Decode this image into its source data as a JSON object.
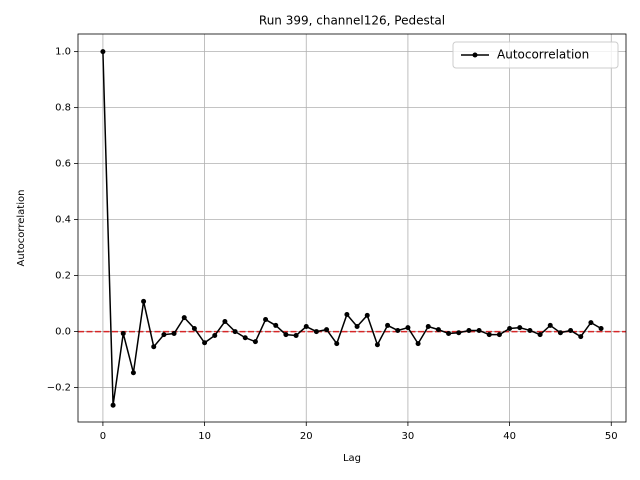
{
  "chart_data": {
    "type": "line",
    "title": "Run 399, channel126, Pedestal",
    "x_label": "Lag",
    "y_label": "Autocorrelation",
    "x": [
      0,
      1,
      2,
      3,
      4,
      5,
      6,
      7,
      8,
      9,
      10,
      11,
      12,
      13,
      14,
      15,
      16,
      17,
      18,
      19,
      20,
      21,
      22,
      23,
      24,
      25,
      26,
      27,
      28,
      29,
      30,
      31,
      32,
      33,
      34,
      35,
      36,
      37,
      38,
      39,
      40,
      41,
      42,
      43,
      44,
      45,
      46,
      47,
      48,
      49
    ],
    "series": [
      {
        "name": "Autocorrelation",
        "color": "#000000",
        "values": [
          1.0,
          -0.263,
          -0.007,
          -0.147,
          0.108,
          -0.054,
          -0.011,
          -0.007,
          0.05,
          0.011,
          -0.04,
          -0.014,
          0.036,
          0.0,
          -0.022,
          -0.036,
          0.043,
          0.022,
          -0.011,
          -0.014,
          0.018,
          0.0,
          0.007,
          -0.043,
          0.061,
          0.018,
          0.058,
          -0.047,
          0.022,
          0.004,
          0.014,
          -0.043,
          0.018,
          0.007,
          -0.007,
          -0.004,
          0.004,
          0.004,
          -0.011,
          -0.011,
          0.011,
          0.014,
          0.004,
          -0.011,
          0.022,
          -0.004,
          0.004,
          -0.018,
          0.032,
          0.011
        ]
      }
    ],
    "hline": {
      "value": 0,
      "color": "#d62728"
    },
    "xlim": [
      -2.45,
      51.45
    ],
    "ylim": [
      -0.323,
      1.063
    ],
    "xticks": [
      0,
      10,
      20,
      30,
      40,
      50
    ],
    "yticks": [
      {
        "value": -0.2,
        "label": "−0.2"
      },
      {
        "value": 0,
        "label": "0.0"
      },
      {
        "value": 0.2,
        "label": "0.2"
      },
      {
        "value": 0.4,
        "label": "0.4"
      },
      {
        "value": 0.6,
        "label": "0.6"
      },
      {
        "value": 0.8,
        "label": "0.8"
      },
      {
        "value": 1.0,
        "label": "1.0"
      }
    ],
    "grid": true,
    "legend": "upper right"
  }
}
